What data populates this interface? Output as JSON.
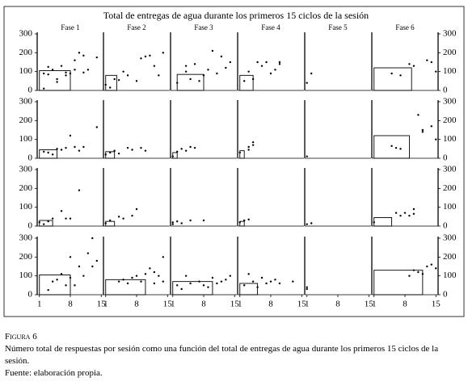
{
  "chart_data": {
    "type": "scatter",
    "title": "Total de entregas de agua durante los primeros 15 ciclos de la sesión",
    "phases": [
      "Fase 1",
      "Fase 2",
      "Fase 3",
      "Fase 4",
      "Fase 5",
      "Fase 6"
    ],
    "xlim": [
      0.5,
      15.5
    ],
    "xticks": [
      1,
      8,
      15
    ],
    "ylim": [
      0,
      300
    ],
    "yticks": [
      0,
      100,
      200,
      300
    ],
    "color": "#000000",
    "rows": [
      [
        {
          "x": [
            2,
            2,
            3,
            3,
            4,
            5,
            5,
            6,
            7,
            7,
            8,
            9,
            9,
            10,
            11,
            11,
            12,
            14
          ],
          "y": [
            10,
            90,
            85,
            125,
            110,
            60,
            45,
            130,
            95,
            80,
            90,
            160,
            110,
            200,
            95,
            185,
            110,
            175
          ],
          "box": {
            "x": [
              1,
              8
            ],
            "y": 105
          }
        },
        {
          "x": [
            1,
            2,
            3,
            4,
            5,
            6,
            8,
            9,
            10,
            11,
            12,
            13,
            14
          ],
          "y": [
            30,
            15,
            60,
            55,
            100,
            80,
            50,
            170,
            180,
            185,
            130,
            80,
            200
          ],
          "box": {
            "x": [
              1,
              3.5
            ],
            "y": 80
          }
        },
        {
          "x": [
            2,
            4,
            4,
            5,
            6,
            7,
            8,
            9,
            10,
            11,
            12,
            13,
            14
          ],
          "y": [
            40,
            100,
            130,
            60,
            140,
            50,
            80,
            110,
            210,
            90,
            180,
            120,
            150
          ],
          "box": {
            "x": [
              2,
              8
            ],
            "y": 85
          }
        },
        {
          "x": [
            2,
            3,
            4,
            5,
            6,
            7,
            8,
            9,
            10,
            10
          ],
          "y": [
            50,
            100,
            60,
            150,
            130,
            150,
            90,
            110,
            140,
            150
          ],
          "box": {
            "x": [
              1,
              4
            ],
            "y": 80
          }
        },
        {
          "x": [
            1,
            2
          ],
          "y": [
            40,
            90
          ]
        },
        {
          "x": [
            5,
            7,
            9,
            10,
            13,
            14,
            15
          ],
          "y": [
            90,
            80,
            140,
            130,
            160,
            150,
            100
          ],
          "box": {
            "x": [
              1,
              9.5
            ],
            "y": 120
          }
        }
      ],
      [
        {
          "x": [
            2,
            3,
            4,
            5,
            6,
            7,
            8,
            9,
            10,
            11,
            14
          ],
          "y": [
            35,
            30,
            20,
            50,
            45,
            55,
            120,
            60,
            40,
            60,
            165
          ],
          "box": {
            "x": [
              1,
              5
            ],
            "y": 45
          }
        },
        {
          "x": [
            1,
            2,
            3,
            4,
            6,
            7,
            9,
            10
          ],
          "y": [
            20,
            30,
            40,
            25,
            55,
            45,
            55,
            40
          ],
          "box": {
            "x": [
              1,
              3
            ],
            "y": 35
          }
        },
        {
          "x": [
            1,
            2,
            3,
            4,
            5,
            6
          ],
          "y": [
            10,
            35,
            50,
            40,
            60,
            55
          ],
          "box": {
            "x": [
              1,
              2
            ],
            "y": 30
          }
        },
        {
          "x": [
            1,
            3,
            3,
            4,
            4
          ],
          "y": [
            30,
            45,
            60,
            85,
            70
          ],
          "box": {
            "x": [
              1,
              2
            ],
            "y": 40
          }
        },
        {
          "x": [
            1
          ],
          "y": [
            10
          ]
        },
        {
          "x": [
            5,
            6,
            7,
            11,
            12,
            12,
            14,
            15
          ],
          "y": [
            65,
            55,
            50,
            230,
            150,
            140,
            170,
            100
          ],
          "box": {
            "x": [
              1,
              9
            ],
            "y": 120
          }
        }
      ],
      [
        {
          "x": [
            1,
            2,
            3,
            4,
            6,
            7,
            8,
            10
          ],
          "y": [
            20,
            10,
            25,
            40,
            80,
            40,
            40,
            190
          ],
          "box": {
            "x": [
              1,
              4
            ],
            "y": 30
          }
        },
        {
          "x": [
            1,
            2,
            4,
            5,
            7,
            8
          ],
          "y": [
            15,
            30,
            50,
            40,
            55,
            90
          ],
          "box": {
            "x": [
              1,
              3
            ],
            "y": 25
          }
        },
        {
          "x": [
            1,
            1,
            2,
            3,
            5,
            8
          ],
          "y": [
            20,
            10,
            25,
            15,
            30,
            30
          ]
        },
        {
          "x": [
            1,
            2,
            3
          ],
          "y": [
            20,
            30,
            35
          ],
          "box": {
            "x": [
              1,
              2
            ],
            "y": 25
          }
        },
        {
          "x": [
            1,
            2
          ],
          "y": [
            10,
            15
          ]
        },
        {
          "x": [
            1,
            6,
            7,
            8,
            9,
            10,
            10
          ],
          "y": [
            20,
            70,
            55,
            70,
            55,
            90,
            65
          ],
          "box": {
            "x": [
              1,
              5
            ],
            "y": 45
          }
        }
      ],
      [
        {
          "x": [
            3,
            4,
            5,
            6,
            7,
            8,
            8,
            9,
            10,
            11,
            12,
            13,
            13,
            14
          ],
          "y": [
            25,
            70,
            80,
            110,
            50,
            200,
            90,
            50,
            150,
            100,
            220,
            300,
            150,
            180
          ],
          "box": {
            "x": [
              1,
              8
            ],
            "y": 105
          }
        },
        {
          "x": [
            4,
            5,
            6,
            7,
            8,
            9,
            10,
            11,
            12,
            12,
            13,
            14,
            14
          ],
          "y": [
            70,
            80,
            60,
            90,
            100,
            70,
            110,
            140,
            60,
            120,
            100,
            200,
            70
          ],
          "box": {
            "x": [
              1,
              10
            ],
            "y": 80
          }
        },
        {
          "x": [
            2,
            3,
            4,
            5,
            7,
            8,
            9,
            10,
            11,
            12,
            13,
            14
          ],
          "y": [
            50,
            30,
            100,
            60,
            70,
            50,
            40,
            90,
            60,
            70,
            80,
            100
          ],
          "box": {
            "x": [
              1,
              10
            ],
            "y": 70
          }
        },
        {
          "x": [
            2,
            3,
            4,
            5,
            6,
            7,
            8,
            9,
            10,
            13
          ],
          "y": [
            50,
            110,
            70,
            40,
            90,
            60,
            70,
            80,
            60,
            70
          ],
          "box": {
            "x": [
              1,
              5
            ],
            "y": 60
          }
        },
        {
          "x": [
            1,
            1
          ],
          "y": [
            30,
            40
          ]
        },
        {
          "x": [
            9,
            10,
            11,
            12,
            13,
            14,
            15
          ],
          "y": [
            100,
            130,
            120,
            110,
            150,
            160,
            140
          ],
          "box": {
            "x": [
              1,
              12
            ],
            "y": 130
          }
        }
      ]
    ]
  },
  "caption": {
    "label": "Figura 6",
    "text": "Número total de respuestas por sesión como una función del total de entregas de agua durante los primeros 15 ciclos de la sesión.",
    "source": "Fuente: elaboración propia."
  }
}
